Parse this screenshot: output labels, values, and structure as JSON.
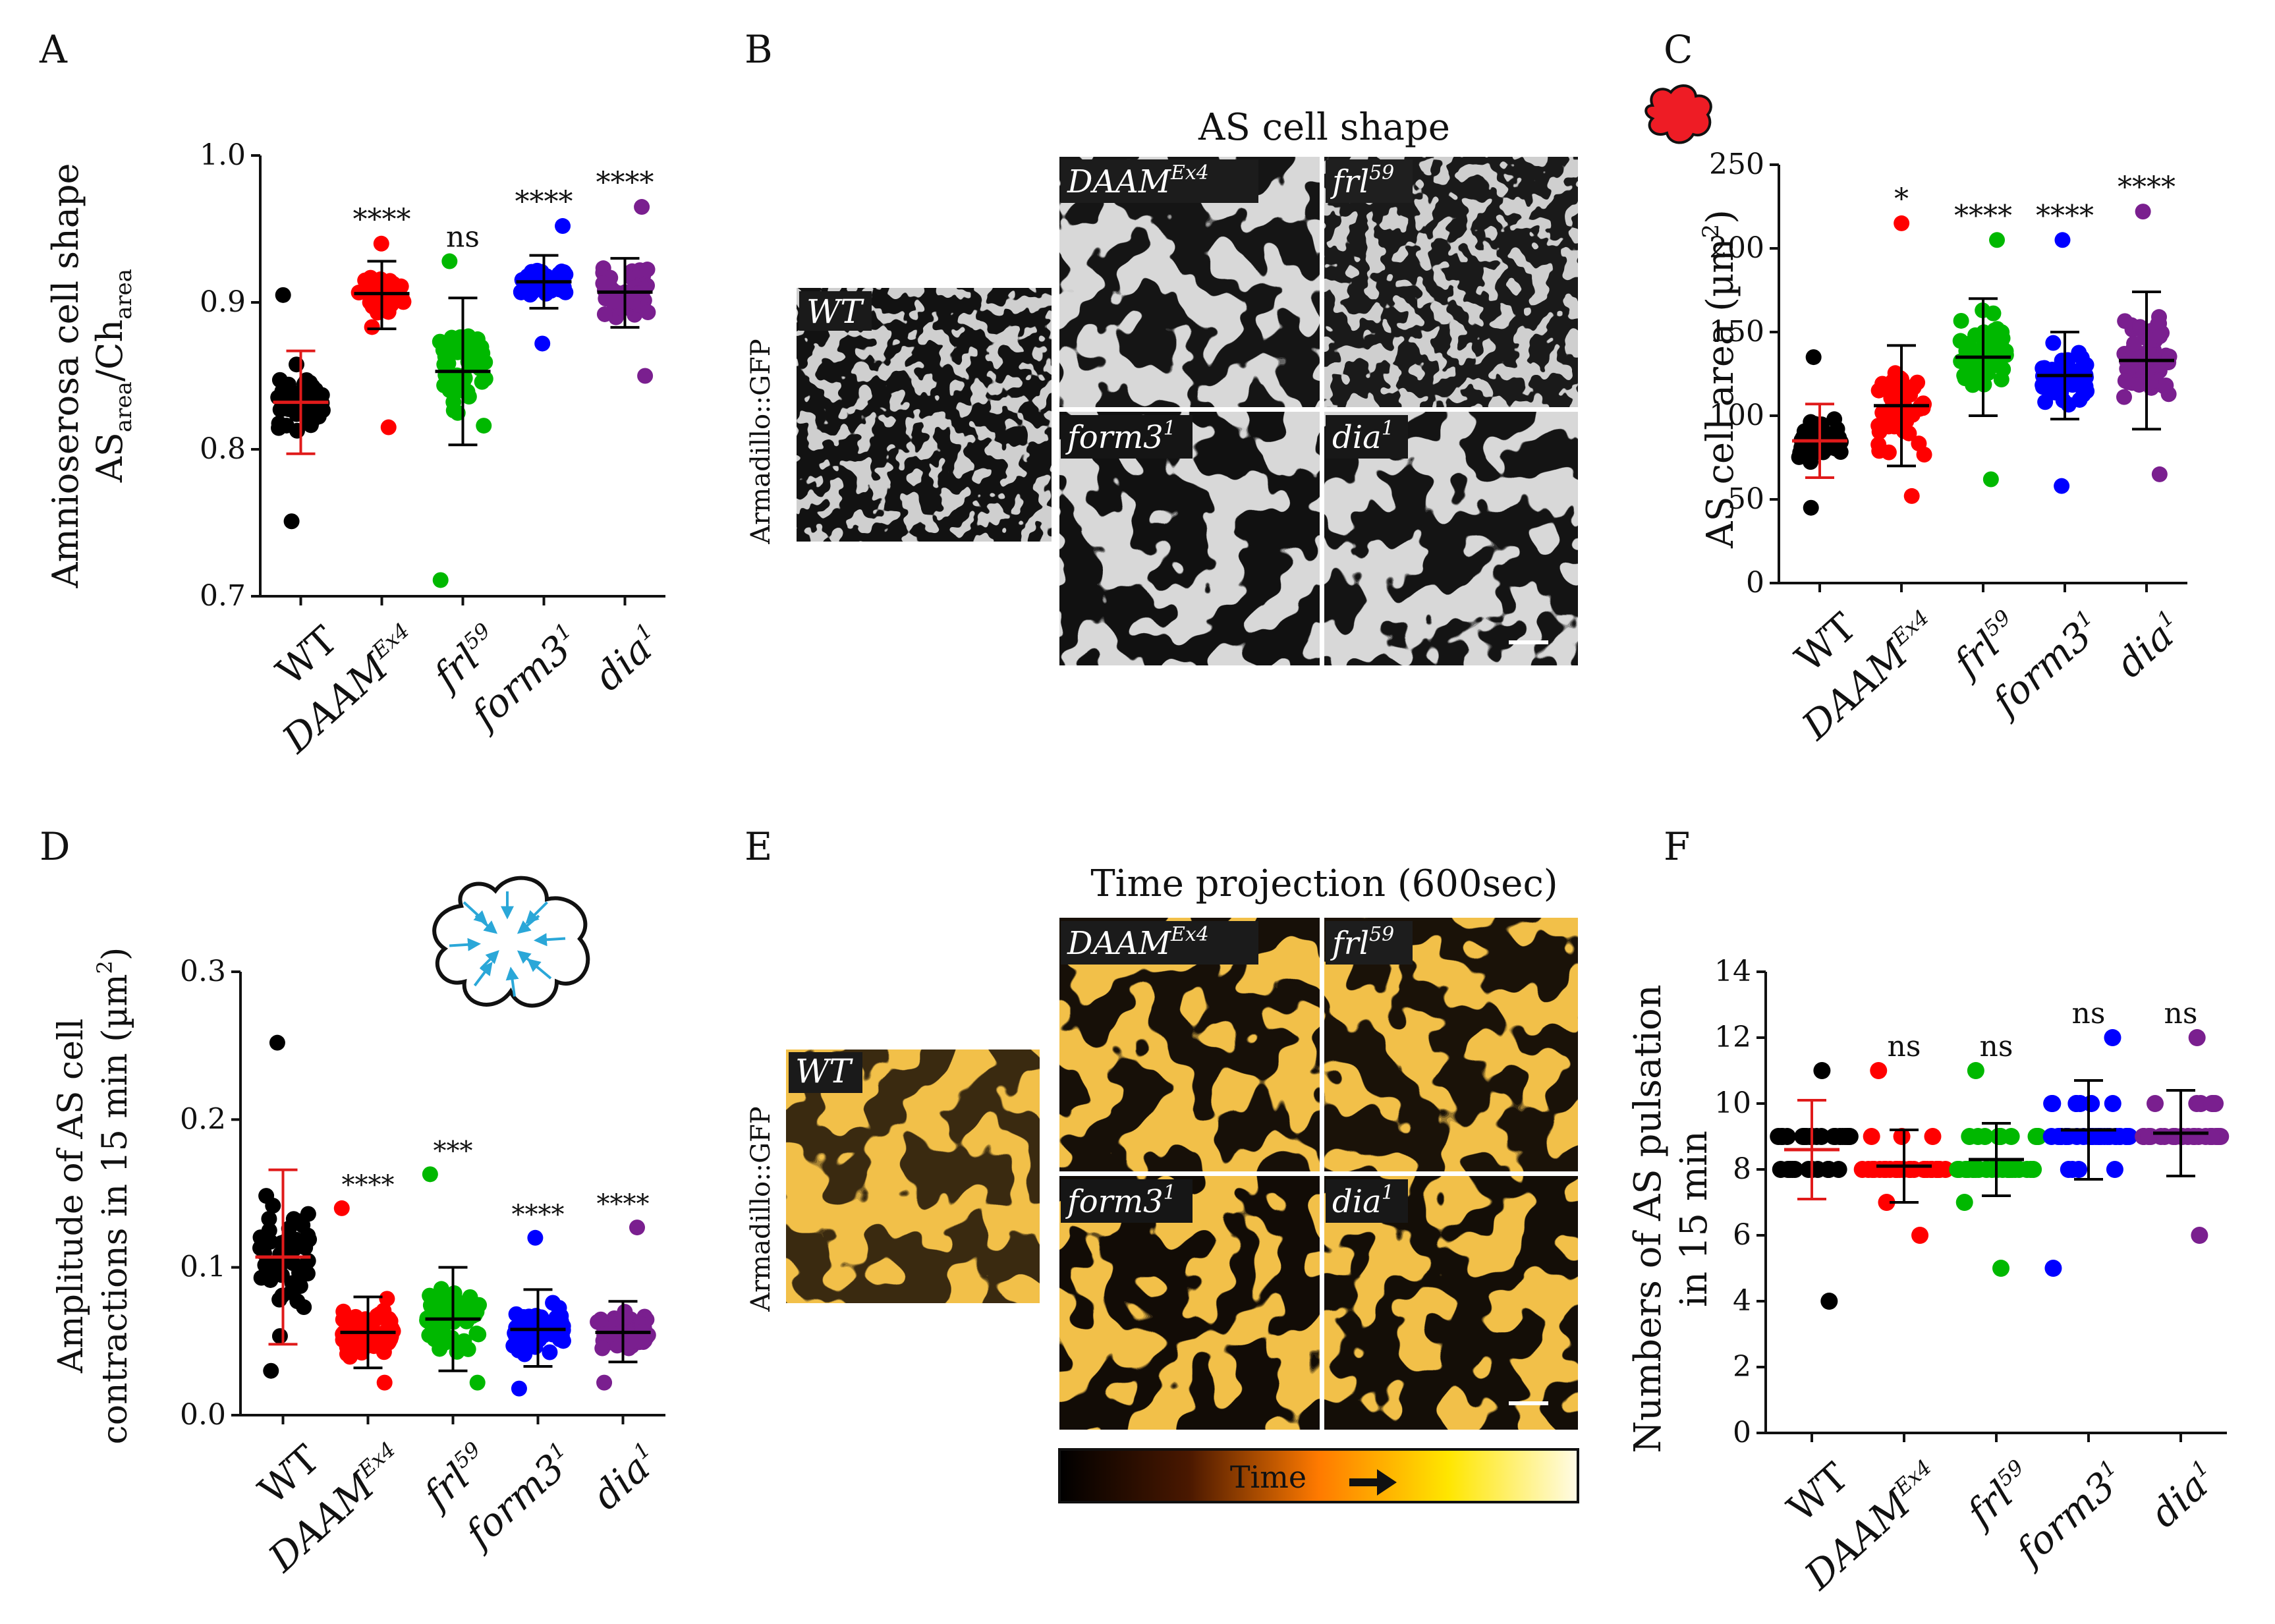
{
  "figure": {
    "panels": {
      "A": {
        "letter": "A"
      },
      "B": {
        "letter": "B",
        "title": "AS cell shape",
        "side_label": "Armadillo::GFP"
      },
      "C": {
        "letter": "C"
      },
      "D": {
        "letter": "D"
      },
      "E": {
        "letter": "E",
        "title": "Time projection (600sec)",
        "side_label": "Armadillo::GFP",
        "colorbar_label": "Time",
        "colorbar_colors": [
          "#000000",
          "#4a1800",
          "#ff7a00",
          "#ffe600",
          "#fffbe6"
        ]
      },
      "F": {
        "letter": "F"
      }
    },
    "image_tiles": {
      "wt": "WT",
      "daam_base": "DAAM",
      "daam_sup": "Ex4",
      "frl_base": "frl",
      "frl_sup": "59",
      "form3_base": "form3",
      "form3_sup": "1",
      "dia_base": "dia",
      "dia_sup": "1"
    },
    "genotype_labels": [
      {
        "base": "WT",
        "sup": ""
      },
      {
        "base": "DAAM",
        "sup": "Ex4"
      },
      {
        "base": "frl",
        "sup": "59"
      },
      {
        "base": "form3",
        "sup": "1"
      },
      {
        "base": "dia",
        "sup": "1"
      }
    ],
    "colors": {
      "WT": "#000000",
      "DAAM": "#ff0000",
      "frl": "#00b800",
      "form3": "#0000ff",
      "dia": "#7a1f8f",
      "mean_wt": "#e01a1a",
      "mean_other": "#000000",
      "arrow_cyan": "#2aa7d8"
    }
  },
  "chart_data": [
    {
      "panel": "A",
      "type": "scatter",
      "ylabel_line1": "Amnioserosa cell shape",
      "ylabel_line2": {
        "a": "AS",
        "a_sub": "area",
        "sep": "/Ch",
        "b_sub": "area"
      },
      "ylim": [
        0.7,
        1.0
      ],
      "ytick_labels": [
        "0.7",
        "0.8",
        "0.9",
        "1.0"
      ],
      "ytick_values": [
        0.7,
        0.8,
        0.9,
        1.0
      ],
      "categories": [
        "WT",
        "DAAM^Ex4",
        "frl^59",
        "form3^1",
        "dia^1"
      ],
      "series": [
        {
          "name": "WT",
          "mean": 0.832,
          "sd_low": 0.797,
          "sd_high": 0.867,
          "min": 0.751,
          "max": 0.905,
          "n": 45,
          "significance": ""
        },
        {
          "name": "DAAM^Ex4",
          "mean": 0.906,
          "sd_low": 0.882,
          "sd_high": 0.928,
          "min": 0.815,
          "max": 0.94,
          "n": 45,
          "significance": "****"
        },
        {
          "name": "frl^59",
          "mean": 0.853,
          "sd_low": 0.803,
          "sd_high": 0.903,
          "min": 0.711,
          "max": 0.928,
          "n": 50,
          "significance": "ns"
        },
        {
          "name": "form3^1",
          "mean": 0.914,
          "sd_low": 0.896,
          "sd_high": 0.932,
          "min": 0.872,
          "max": 0.952,
          "n": 45,
          "significance": "****"
        },
        {
          "name": "dia^1",
          "mean": 0.907,
          "sd_low": 0.883,
          "sd_high": 0.93,
          "min": 0.85,
          "max": 0.965,
          "n": 50,
          "significance": "****"
        }
      ]
    },
    {
      "panel": "C",
      "type": "scatter",
      "ylabel": "AS cell area (µm",
      "ylabel_sup": "2",
      "ylabel_end": ")",
      "ylim": [
        0,
        250
      ],
      "ytick_labels": [
        "0",
        "50",
        "100",
        "150",
        "200",
        "250"
      ],
      "ytick_values": [
        0,
        50,
        100,
        150,
        200,
        250
      ],
      "categories": [
        "WT",
        "DAAM^Ex4",
        "frl^59",
        "form3^1",
        "dia^1"
      ],
      "series": [
        {
          "name": "WT",
          "mean": 85,
          "sd_low": 63,
          "sd_high": 107,
          "min": 45,
          "max": 135,
          "n": 45,
          "significance": ""
        },
        {
          "name": "DAAM^Ex4",
          "mean": 106,
          "sd_low": 70,
          "sd_high": 142,
          "min": 52,
          "max": 215,
          "n": 55,
          "significance": "*"
        },
        {
          "name": "frl^59",
          "mean": 135,
          "sd_low": 100,
          "sd_high": 170,
          "min": 62,
          "max": 205,
          "n": 55,
          "significance": "****"
        },
        {
          "name": "form3^1",
          "mean": 124,
          "sd_low": 98,
          "sd_high": 150,
          "min": 58,
          "max": 205,
          "n": 55,
          "significance": "****"
        },
        {
          "name": "dia^1",
          "mean": 133,
          "sd_low": 92,
          "sd_high": 174,
          "min": 65,
          "max": 222,
          "n": 55,
          "significance": "****"
        }
      ]
    },
    {
      "panel": "D",
      "type": "scatter",
      "ylabel_line1": "Amplitude of  AS cell",
      "ylabel_line2": "contractions in 15 min (µm",
      "ylabel_line2_sup": "2",
      "ylabel_line2_end": ")",
      "ylim": [
        0.0,
        0.3
      ],
      "ytick_labels": [
        "0.0",
        "0.1",
        "0.2",
        "0.3"
      ],
      "ytick_values": [
        0.0,
        0.1,
        0.2,
        0.3
      ],
      "categories": [
        "WT",
        "DAAM^Ex4",
        "frl^59",
        "form3^1",
        "dia^1"
      ],
      "series": [
        {
          "name": "WT",
          "mean": 0.107,
          "sd_low": 0.048,
          "sd_high": 0.166,
          "min": 0.03,
          "max": 0.252,
          "n": 50,
          "significance": ""
        },
        {
          "name": "DAAM^Ex4",
          "mean": 0.056,
          "sd_low": 0.032,
          "sd_high": 0.08,
          "min": 0.022,
          "max": 0.14,
          "n": 60,
          "significance": "****"
        },
        {
          "name": "frl^59",
          "mean": 0.065,
          "sd_low": 0.03,
          "sd_high": 0.1,
          "min": 0.022,
          "max": 0.163,
          "n": 55,
          "significance": "***"
        },
        {
          "name": "form3^1",
          "mean": 0.058,
          "sd_low": 0.033,
          "sd_high": 0.085,
          "min": 0.018,
          "max": 0.12,
          "n": 60,
          "significance": "****"
        },
        {
          "name": "dia^1",
          "mean": 0.056,
          "sd_low": 0.036,
          "sd_high": 0.077,
          "min": 0.022,
          "max": 0.127,
          "n": 60,
          "significance": "****"
        }
      ]
    },
    {
      "panel": "F",
      "type": "scatter",
      "ylabel_line1": "Numbers of AS pulsation",
      "ylabel_line2": "in 15 min",
      "ylim": [
        0,
        14
      ],
      "ytick_labels": [
        "0",
        "2",
        "4",
        "6",
        "8",
        "10",
        "12",
        "14"
      ],
      "ytick_values": [
        0,
        2,
        4,
        6,
        8,
        10,
        12,
        14
      ],
      "categories": [
        "WT",
        "DAAM^Ex4",
        "frl^59",
        "form3^1",
        "dia^1"
      ],
      "series": [
        {
          "name": "WT",
          "mean": 8.6,
          "sd_low": 7.1,
          "sd_high": 10.1,
          "min": 4,
          "max": 11,
          "n": 35,
          "integer": true,
          "significance": ""
        },
        {
          "name": "DAAM^Ex4",
          "mean": 8.1,
          "sd_low": 7.0,
          "sd_high": 9.2,
          "min": 6,
          "max": 11,
          "n": 35,
          "integer": true,
          "significance": "ns"
        },
        {
          "name": "frl^59",
          "mean": 8.3,
          "sd_low": 7.2,
          "sd_high": 9.4,
          "min": 5,
          "max": 11,
          "n": 35,
          "integer": true,
          "significance": "ns"
        },
        {
          "name": "form3^1",
          "mean": 9.2,
          "sd_low": 7.7,
          "sd_high": 10.7,
          "min": 5,
          "max": 12,
          "n": 40,
          "integer": true,
          "significance": "ns"
        },
        {
          "name": "dia^1",
          "mean": 9.1,
          "sd_low": 7.8,
          "sd_high": 10.4,
          "min": 6,
          "max": 12,
          "n": 30,
          "integer": true,
          "significance": "ns"
        }
      ]
    }
  ]
}
